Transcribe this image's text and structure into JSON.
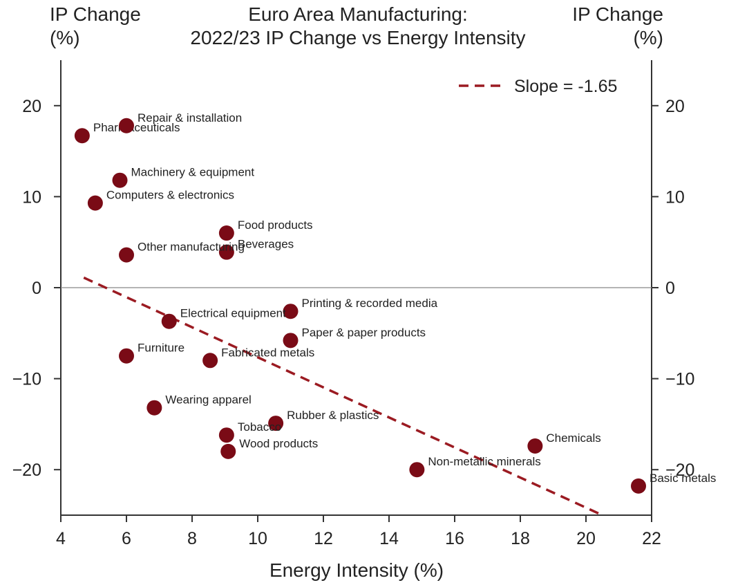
{
  "chart_data": {
    "type": "scatter",
    "title_lines": [
      "Euro Area Manufacturing:",
      "2022/23 IP Change vs Energy Intensity"
    ],
    "ylabel_left_lines": [
      "IP Change",
      "(%)"
    ],
    "ylabel_right_lines": [
      "IP Change",
      "(%)"
    ],
    "xlabel": "Energy Intensity (%)",
    "xlim": [
      4,
      22
    ],
    "ylim": [
      -25,
      25
    ],
    "x_ticks": [
      4,
      6,
      8,
      10,
      12,
      14,
      16,
      18,
      20,
      22
    ],
    "y_ticks": [
      20,
      10,
      0,
      -10,
      -20
    ],
    "y_tick_labels": [
      "20",
      "10",
      "0",
      "−10",
      "−20"
    ],
    "marker_color": "#7a0b16",
    "zero_line": true,
    "grid": false,
    "legend_position": "top-right",
    "trendline": {
      "label": "Slope = -1.65",
      "slope": -1.65,
      "x": [
        4.7,
        20.5
      ],
      "y": [
        1.1,
        -25
      ],
      "color": "#9b1b22",
      "style": "dashed"
    },
    "points": [
      {
        "label": "Pharmaceuticals",
        "x": 4.65,
        "y": 16.7
      },
      {
        "label": "Repair & installation",
        "x": 6.0,
        "y": 17.8
      },
      {
        "label": "Machinery & equipment",
        "x": 5.8,
        "y": 11.8
      },
      {
        "label": "Computers & electronics",
        "x": 5.05,
        "y": 9.3
      },
      {
        "label": "Food products",
        "x": 9.05,
        "y": 6.0
      },
      {
        "label": "Beverages",
        "x": 9.05,
        "y": 3.9
      },
      {
        "label": "Other manufacturing",
        "x": 6.0,
        "y": 3.6
      },
      {
        "label": "Printing & recorded media",
        "x": 11.0,
        "y": -2.6
      },
      {
        "label": "Electrical equipment",
        "x": 7.3,
        "y": -3.7
      },
      {
        "label": "Paper & paper products",
        "x": 11.0,
        "y": -5.8
      },
      {
        "label": "Furniture",
        "x": 6.0,
        "y": -7.5
      },
      {
        "label": "Fabricated metals",
        "x": 8.55,
        "y": -8.0
      },
      {
        "label": "Wearing apparel",
        "x": 6.85,
        "y": -13.2
      },
      {
        "label": "Rubber & plastics",
        "x": 10.55,
        "y": -14.9
      },
      {
        "label": "Tobacco",
        "x": 9.05,
        "y": -16.2
      },
      {
        "label": "Wood products",
        "x": 9.1,
        "y": -18.0
      },
      {
        "label": "Chemicals",
        "x": 18.45,
        "y": -17.4
      },
      {
        "label": "Non-metallic minerals",
        "x": 14.85,
        "y": -20.0
      },
      {
        "label": "Basic metals",
        "x": 21.6,
        "y": -21.8
      }
    ]
  }
}
